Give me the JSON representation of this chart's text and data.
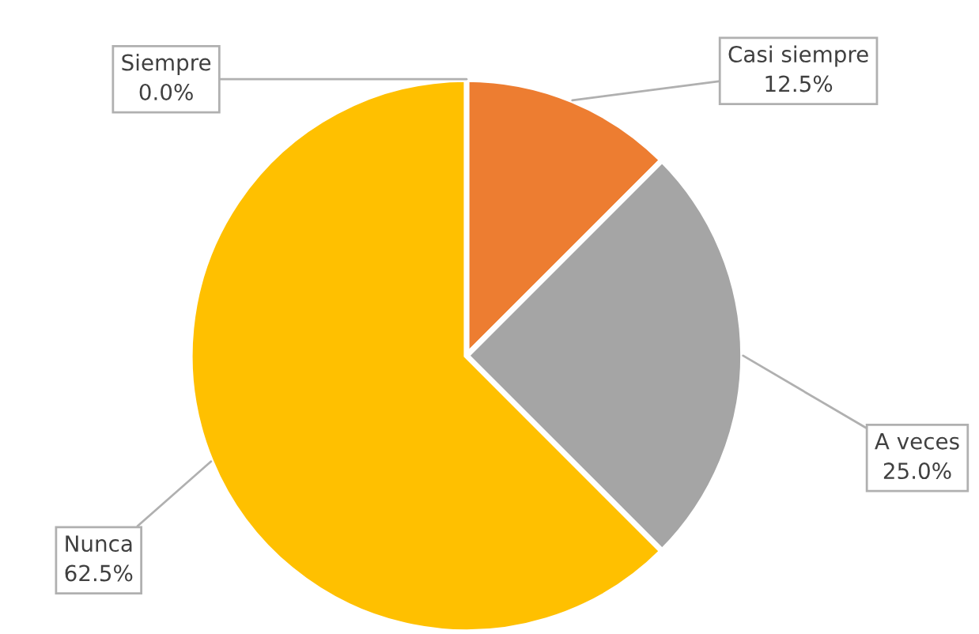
{
  "chart_data": {
    "type": "pie",
    "categories": [
      "Siempre",
      "Casi siempre",
      "A veces",
      "Nunca"
    ],
    "values": [
      0,
      12.5,
      25,
      62.5
    ],
    "value_labels": [
      "0.0%",
      "12.5%",
      "25.0%",
      "62.5%"
    ],
    "colors": [
      "#4472c4",
      "#ed7d31",
      "#a5a5a5",
      "#ffc000"
    ],
    "legend": false
  }
}
